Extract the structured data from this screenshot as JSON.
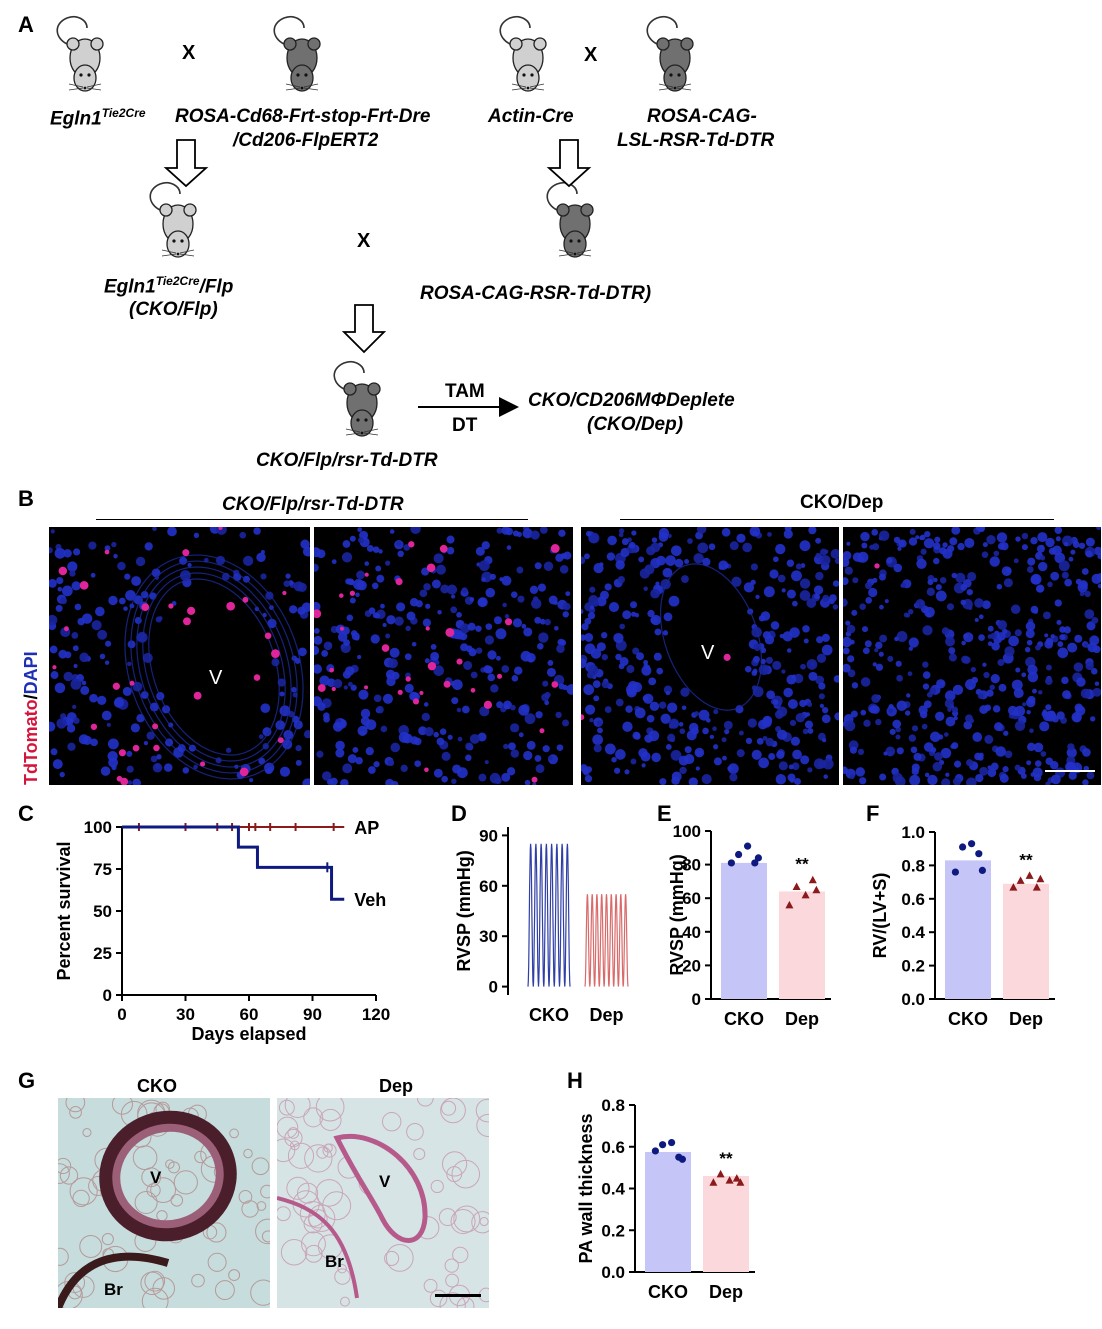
{
  "panels": {
    "a": "A",
    "b": "B",
    "c": "C",
    "d": "D",
    "e": "E",
    "f": "F",
    "g": "G",
    "h": "H"
  },
  "scheme": {
    "cross": "X",
    "m1": "Egln1",
    "m1_sup": "Tie2Cre",
    "m2_line1": "ROSA-Cd68-Frt-stop-Frt-Dre",
    "m2_line2": "/Cd206-FlpERT2",
    "m3": "Actin-Cre",
    "m4_line1": "ROSA-CAG-",
    "m4_line2": "LSL-RSR-Td-DTR",
    "m5_a": "Egln1",
    "m5_sup": "Tie2Cre",
    "m5_b": "/Flp",
    "m5_line2": "(CKO/Flp)",
    "m6": "ROSA-CAG-RSR-Td-DTR)",
    "m7": "CKO/Flp/rsr-Td-DTR",
    "arrow_top": "TAM",
    "arrow_bottom": "DT",
    "result_line1": "CKO/CD206MΦDeplete",
    "result_line2": "(CKO/Dep)"
  },
  "panel_b": {
    "group1": "CKO/Flp/rsr-Td-DTR",
    "group2": "CKO/Dep",
    "ylabel_red": "TdTomato",
    "ylabel_sep": "/",
    "ylabel_blue": "DAPI",
    "vessel": "V"
  },
  "panel_g": {
    "left_title": "CKO",
    "right_title": "Dep",
    "vessel": "V",
    "bronchus": "Br"
  },
  "colors": {
    "cko_bar": "#c5c6f7",
    "dep_bar": "#fbd8dc",
    "cko_point": "#0e1a80",
    "dep_point": "#8b1a1a",
    "tdtomato": "#d4143a",
    "dapi": "#1f2fb5"
  },
  "chart_data": [
    {
      "id": "C",
      "type": "line",
      "xlabel": "Days elapsed",
      "ylabel": "Percent survival",
      "xlim": [
        0,
        120
      ],
      "ylim": [
        0,
        100
      ],
      "xticks": [
        0,
        30,
        60,
        90,
        120
      ],
      "yticks": [
        0,
        25,
        50,
        75,
        100
      ],
      "series": [
        {
          "name": "AP",
          "x": [
            0,
            105
          ],
          "y": [
            100,
            100
          ],
          "censor": [
            8,
            30,
            45,
            52,
            60,
            63,
            70,
            82,
            100
          ]
        },
        {
          "name": "Veh",
          "x": [
            0,
            55,
            55,
            64,
            64,
            99,
            99,
            105
          ],
          "y": [
            100,
            100,
            88,
            88,
            76,
            76,
            57,
            57
          ]
        }
      ]
    },
    {
      "id": "D",
      "type": "line",
      "ylabel": "RVSP (mmHg)",
      "ylim": [
        -5,
        95
      ],
      "yticks": [
        0,
        30,
        60,
        90
      ],
      "categories": [
        "CKO",
        "Dep"
      ],
      "series": [
        {
          "name": "CKO",
          "peak": 85,
          "trough": 0,
          "cycles": 8
        },
        {
          "name": "Dep",
          "peak": 55,
          "trough": 0,
          "cycles": 9
        }
      ]
    },
    {
      "id": "E",
      "type": "bar",
      "ylabel": "RVSP (mmHg)",
      "ylim": [
        0,
        100
      ],
      "yticks": [
        0,
        20,
        40,
        60,
        80,
        100
      ],
      "categories": [
        "CKO",
        "Dep"
      ],
      "values": [
        81,
        64
      ],
      "points": [
        [
          81,
          86,
          91,
          81,
          84
        ],
        [
          56,
          67,
          62,
          71,
          65
        ]
      ],
      "annotation": "**"
    },
    {
      "id": "F",
      "type": "bar",
      "ylabel": "RV/(LV+S)",
      "ylim": [
        0,
        1.0
      ],
      "yticks": [
        0.0,
        0.2,
        0.4,
        0.6,
        0.8,
        1.0
      ],
      "tick_labels": [
        "0.0",
        "0.2",
        "0.4",
        "0.6",
        "0.8",
        "1.0"
      ],
      "categories": [
        "CKO",
        "Dep"
      ],
      "values": [
        0.83,
        0.69
      ],
      "points": [
        [
          0.76,
          0.91,
          0.93,
          0.87,
          0.77
        ],
        [
          0.67,
          0.71,
          0.74,
          0.67,
          0.72
        ]
      ],
      "annotation": "**"
    },
    {
      "id": "H",
      "type": "bar",
      "ylabel": "PA wall thickness",
      "ylim": [
        0,
        0.8
      ],
      "yticks": [
        0.0,
        0.2,
        0.4,
        0.6,
        0.8
      ],
      "tick_labels": [
        "0.0",
        "0.2",
        "0.4",
        "0.6",
        "0.8"
      ],
      "categories": [
        "CKO",
        "Dep"
      ],
      "values": [
        0.575,
        0.46
      ],
      "points": [
        [
          0.58,
          0.61,
          0.62,
          0.55,
          0.54
        ],
        [
          0.43,
          0.47,
          0.44,
          0.45,
          0.43
        ]
      ],
      "annotation": "**"
    }
  ]
}
